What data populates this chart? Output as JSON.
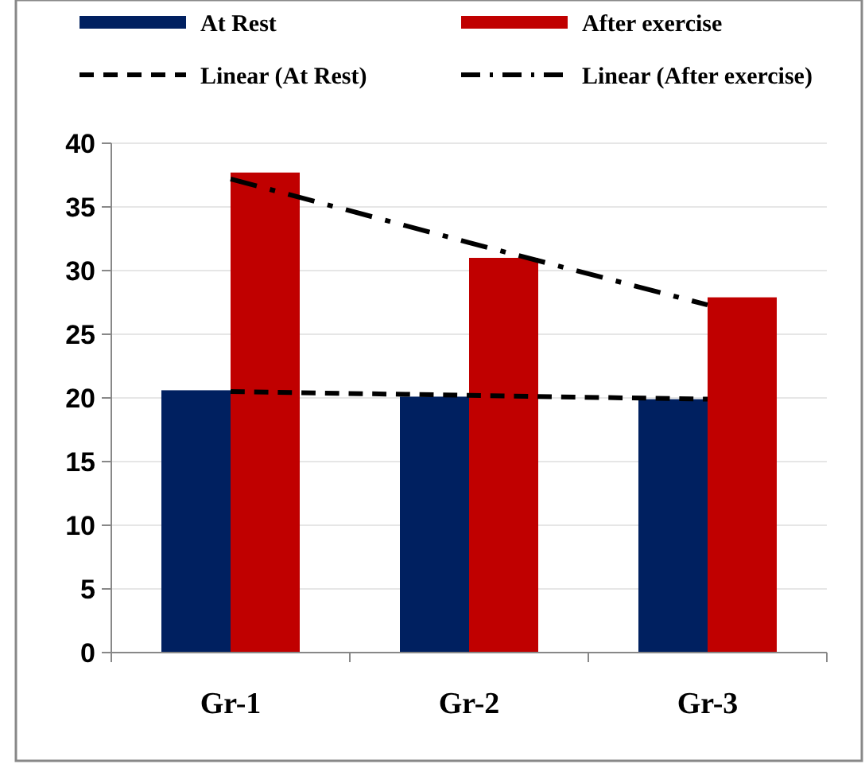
{
  "chart_data": {
    "type": "bar",
    "categories": [
      "Gr-1",
      "Gr-2",
      "Gr-3"
    ],
    "series": [
      {
        "name": "At Rest",
        "color": "#002060",
        "values": [
          20.6,
          20.1,
          19.9
        ]
      },
      {
        "name": "After exercise",
        "color": "#c00000",
        "values": [
          37.7,
          31.0,
          27.9
        ]
      },
      {
        "name": "Linear (At Rest)",
        "type": "line",
        "color": "#000000",
        "line_style": "dashed",
        "values": [
          20.5,
          20.2,
          19.9
        ]
      },
      {
        "name": "Linear (After exercise)",
        "type": "line",
        "color": "#000000",
        "line_style": "dashdot",
        "values": [
          37.2,
          32.2,
          27.3
        ]
      }
    ],
    "ylim": [
      0,
      40
    ],
    "yticks": [
      0,
      5,
      10,
      15,
      20,
      25,
      30,
      35,
      40
    ],
    "grid": "y",
    "legend": "top",
    "marker": "none"
  }
}
